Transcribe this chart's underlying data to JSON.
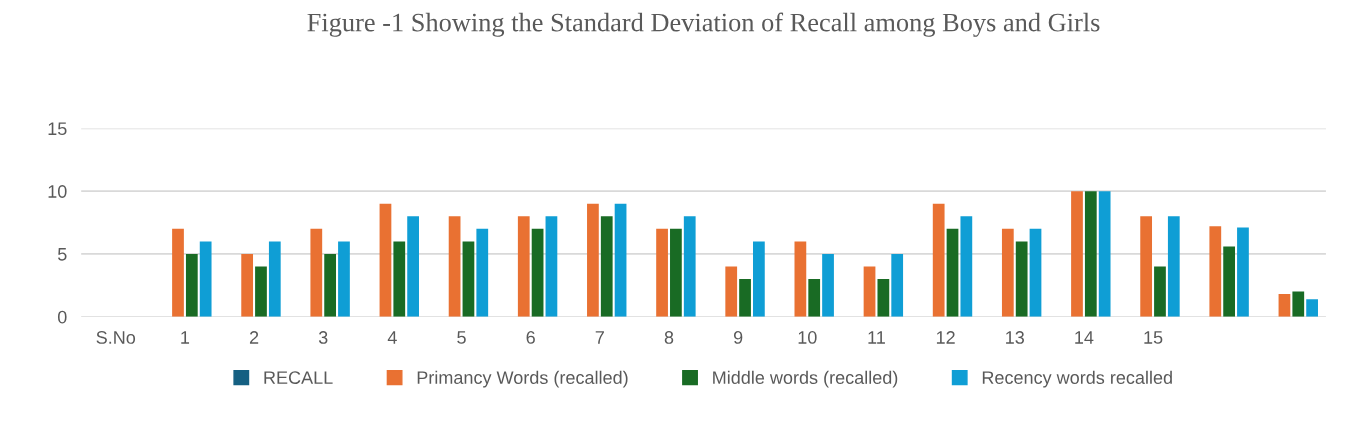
{
  "chart_data": {
    "type": "bar",
    "title": "Figure -1 Showing the Standard Deviation of Recall among Boys and Girls",
    "categories": [
      "S.No",
      "1",
      "2",
      "3",
      "4",
      "5",
      "6",
      "7",
      "8",
      "9",
      "10",
      "11",
      "12",
      "13",
      "14",
      "15",
      null,
      null
    ],
    "series": [
      {
        "name": "RECALL",
        "color": "#156082",
        "values": [
          null,
          null,
          null,
          null,
          null,
          null,
          null,
          null,
          null,
          null,
          null,
          null,
          null,
          null,
          null,
          null,
          null,
          null
        ]
      },
      {
        "name": "Primancy Words (recalled)",
        "color": "#e97132",
        "values": [
          null,
          7,
          5,
          7,
          9,
          8,
          8,
          9,
          7,
          4,
          6,
          4,
          9,
          7,
          10,
          8,
          7.2,
          1.8
        ]
      },
      {
        "name": "Middle words (recalled)",
        "color": "#196b24",
        "values": [
          null,
          5,
          4,
          5,
          6,
          6,
          7,
          8,
          7,
          3,
          3,
          3,
          7,
          6,
          10,
          4,
          5.6,
          2.0
        ]
      },
      {
        "name": "Recency words recalled",
        "color": "#0f9ed5",
        "values": [
          null,
          6,
          6,
          6,
          8,
          7,
          8,
          9,
          8,
          6,
          5,
          5,
          8,
          7,
          10,
          8,
          7.1,
          1.4
        ]
      }
    ],
    "ylim": [
      0,
      15
    ],
    "yticks": [
      0,
      5,
      10,
      15
    ],
    "grid": "y",
    "legend": "bottom"
  }
}
